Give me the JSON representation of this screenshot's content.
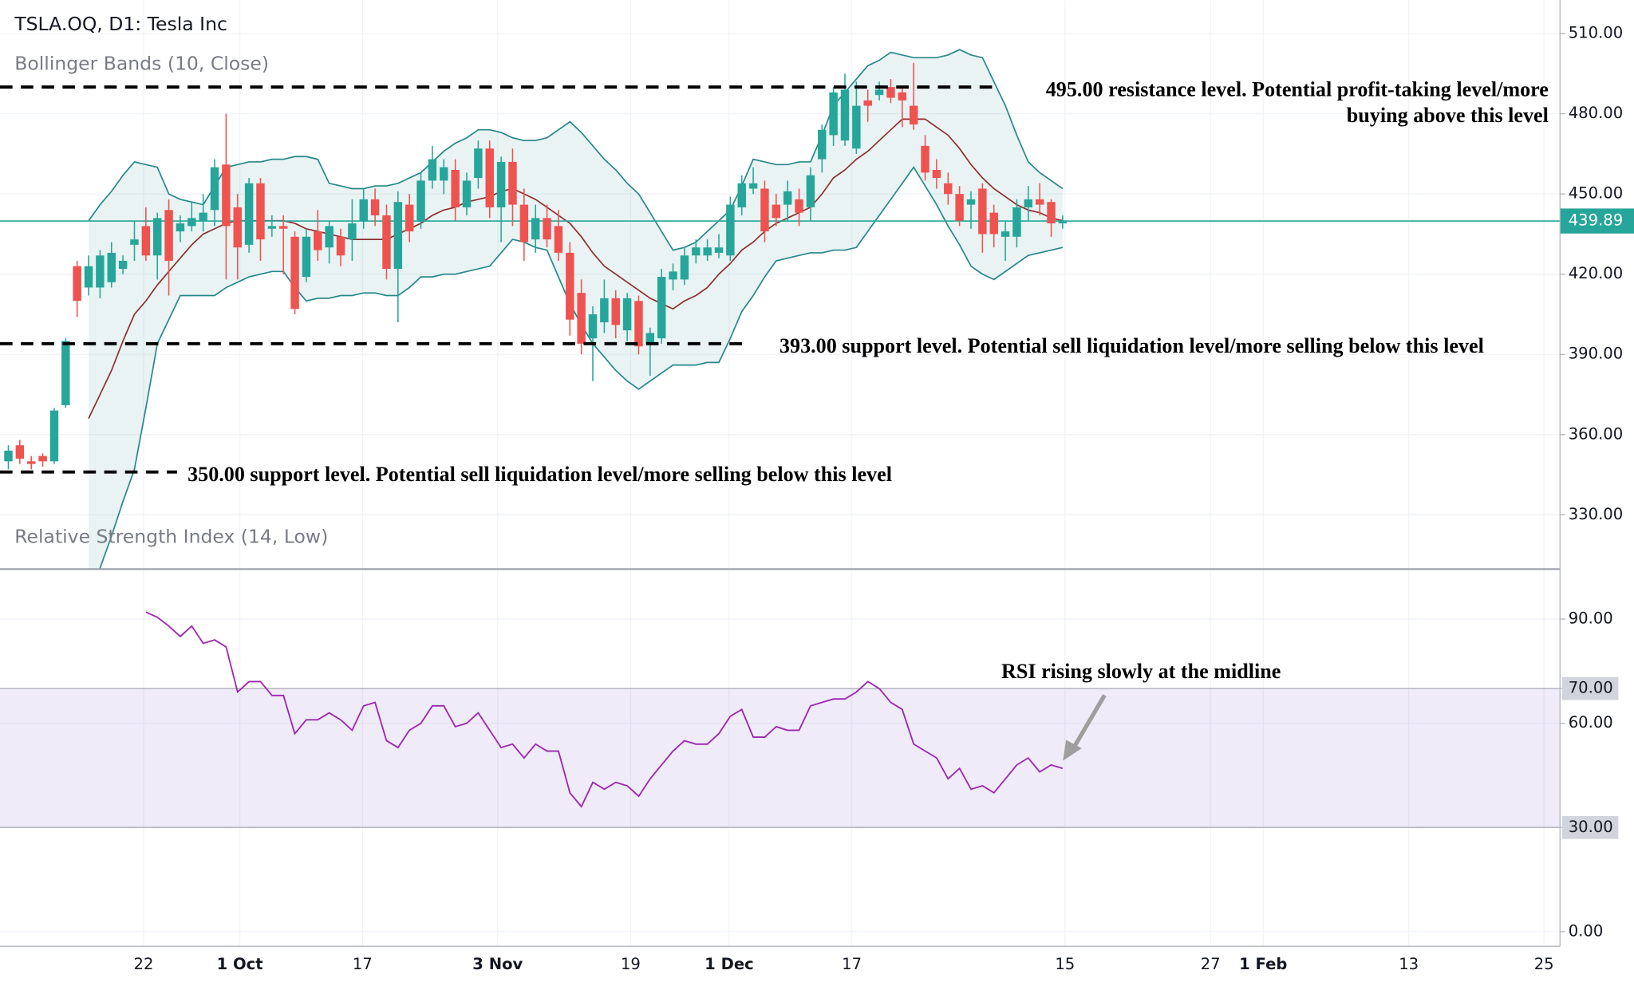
{
  "header": {
    "title": "TSLA.OQ, D1: Tesla Inc"
  },
  "chart_data": [
    {
      "type": "candlestick",
      "title": "Bollinger Bands (10, Close)",
      "up_color": "#26a69a",
      "down_color": "#ef5350",
      "open": [
        350,
        356,
        350,
        352,
        350,
        371,
        423,
        415,
        415,
        417,
        422,
        431,
        438,
        427,
        444,
        436,
        438,
        440,
        444,
        461,
        445,
        431,
        454,
        437,
        438,
        434,
        419,
        436,
        430,
        434,
        433,
        440,
        448,
        442,
        422,
        446,
        440,
        455,
        455,
        459,
        445,
        456,
        467,
        445,
        462,
        446,
        433,
        441,
        438,
        428,
        413,
        396,
        402,
        411,
        399,
        410,
        394,
        396,
        418,
        418,
        427,
        427,
        428,
        427,
        445,
        452,
        452,
        446,
        446,
        448,
        445,
        463,
        472,
        470,
        467,
        485,
        487,
        490,
        488,
        483,
        468,
        459,
        454,
        450,
        446,
        452,
        443,
        434,
        434,
        445,
        448,
        447,
        439
      ],
      "high": [
        356,
        358,
        352,
        353,
        370,
        396,
        425,
        427,
        429,
        432,
        427,
        440,
        445,
        443,
        448,
        442,
        447,
        450,
        463,
        480,
        450,
        456,
        456,
        442,
        442,
        436,
        437,
        444,
        440,
        437,
        448,
        452,
        452,
        446,
        451,
        450,
        458,
        468,
        463,
        463,
        458,
        470,
        470,
        464,
        467,
        452,
        446,
        446,
        444,
        432,
        418,
        408,
        418,
        414,
        413,
        412,
        400,
        422,
        424,
        430,
        433,
        433,
        435,
        449,
        457,
        460,
        455,
        450,
        455,
        452,
        460,
        476,
        490,
        495,
        492,
        489,
        492,
        493,
        490,
        499,
        472,
        463,
        458,
        453,
        451,
        454,
        446,
        440,
        448,
        453,
        454,
        448,
        442
      ],
      "low": [
        347,
        349,
        347,
        348,
        349,
        370,
        404,
        412,
        411,
        415,
        420,
        425,
        425,
        418,
        412,
        432,
        436,
        436,
        438,
        418,
        418,
        428,
        425,
        434,
        420,
        405,
        417,
        425,
        424,
        423,
        425,
        437,
        438,
        418,
        402,
        432,
        437,
        452,
        450,
        440,
        442,
        452,
        441,
        432,
        438,
        425,
        428,
        430,
        425,
        397,
        390,
        380,
        398,
        396,
        395,
        390,
        382,
        394,
        414,
        416,
        424,
        425,
        426,
        425,
        442,
        450,
        432,
        438,
        440,
        438,
        440,
        458,
        468,
        468,
        465,
        477,
        485,
        484,
        475,
        474,
        455,
        452,
        446,
        438,
        437,
        428,
        430,
        425,
        430,
        440,
        442,
        434,
        437
      ],
      "close": [
        354,
        351,
        349,
        350,
        369,
        395,
        410,
        423,
        427,
        428,
        425,
        433,
        427,
        441,
        425,
        439,
        441,
        443,
        460,
        438,
        430,
        454,
        433,
        438,
        437,
        407,
        434,
        429,
        438,
        427,
        439,
        448,
        442,
        422,
        447,
        436,
        455,
        463,
        460,
        445,
        455,
        467,
        445,
        462,
        446,
        432,
        441,
        433,
        428,
        403,
        394,
        405,
        411,
        401,
        411,
        393,
        398,
        419,
        421,
        427,
        430,
        430,
        430,
        446,
        454,
        454,
        436,
        441,
        451,
        443,
        457,
        474,
        488,
        489,
        483,
        483,
        489,
        486,
        485,
        476,
        458,
        456,
        450,
        440,
        448,
        435,
        435,
        436,
        445,
        448,
        446,
        439,
        439.89
      ],
      "bands": {
        "band_color": "#26878a",
        "middle_color": "#8d2f2f",
        "upper": [
          null,
          null,
          null,
          null,
          null,
          null,
          null,
          440,
          446,
          451,
          457,
          462,
          461,
          460,
          450,
          448,
          447,
          446,
          453,
          460,
          461,
          462,
          462,
          463,
          463,
          464,
          464,
          463,
          454,
          453,
          452,
          452,
          453,
          453,
          454,
          456,
          458,
          462,
          466,
          469,
          471,
          474,
          474,
          473,
          471,
          470,
          470,
          471,
          474,
          477,
          473,
          468,
          463,
          459,
          454,
          450,
          443,
          436,
          429,
          430,
          432,
          436,
          440,
          444,
          453,
          463,
          462,
          461,
          461,
          462,
          462,
          472,
          483,
          488,
          493,
          498,
          500,
          503,
          502,
          501,
          501,
          501,
          502,
          504,
          502,
          501,
          492,
          483,
          472,
          462,
          458,
          455,
          452
        ],
        "middle": [
          null,
          null,
          null,
          null,
          null,
          null,
          null,
          366,
          375,
          384,
          395,
          405,
          410,
          416,
          421,
          426,
          431,
          435,
          437,
          439,
          440,
          440,
          440,
          440,
          440,
          439,
          437,
          436,
          435,
          434,
          433,
          433,
          433,
          433,
          435,
          437,
          439,
          442,
          444,
          445,
          447,
          448,
          449,
          451,
          452,
          450,
          448,
          445,
          442,
          439,
          434,
          428,
          423,
          420,
          417,
          414,
          411,
          409,
          407,
          410,
          412,
          415,
          420,
          424,
          429,
          432,
          436,
          439,
          441,
          443,
          445,
          450,
          456,
          459,
          463,
          466,
          470,
          474,
          478,
          478,
          478,
          475,
          472,
          467,
          461,
          456,
          452,
          449,
          446,
          444,
          443,
          441,
          440
        ],
        "lower": [
          null,
          null,
          null,
          null,
          null,
          null,
          null,
          300,
          310,
          322,
          335,
          347,
          370,
          394,
          403,
          412,
          412,
          412,
          412,
          415,
          417,
          419,
          420,
          421,
          421,
          415,
          410,
          411,
          411,
          412,
          412,
          413,
          413,
          412,
          412,
          415,
          419,
          419,
          420,
          420,
          421,
          422,
          423,
          428,
          433,
          432,
          430,
          429,
          419,
          409,
          401,
          394,
          389,
          384,
          380,
          377,
          380,
          383,
          386,
          386,
          386,
          387,
          387,
          396,
          406,
          412,
          419,
          425,
          426,
          427,
          428,
          428,
          429,
          429,
          430,
          436,
          442,
          448,
          454,
          460,
          453,
          446,
          438,
          431,
          423,
          420,
          418,
          421,
          424,
          427,
          428,
          429,
          430
        ]
      },
      "last_price": 439.89,
      "last_price_color": "#26a69a",
      "xlim": [
        -0.73,
        135.4
      ],
      "ylim": [
        309.7,
        522.5
      ],
      "yticks": [
        {
          "value": 330,
          "label": "330.00"
        },
        {
          "value": 360,
          "label": "360.00"
        },
        {
          "value": 390,
          "label": "390.00"
        },
        {
          "value": 420,
          "label": "420.00"
        },
        {
          "value": 450,
          "label": "450.00"
        },
        {
          "value": 480,
          "label": "480.00"
        },
        {
          "value": 510,
          "label": "510.00"
        }
      ],
      "grid": true,
      "annotations": [
        {
          "y": 490,
          "lines": [
            "495.00 resistance level. Potential profit-taking level/more",
            "buying above this level"
          ]
        },
        {
          "y": 394,
          "lines": [
            "393.00 support level. Potential sell liquidation level/more selling below this level"
          ]
        },
        {
          "y": 346,
          "lines": [
            "350.00 support level. Potential sell liquidation level/more selling below this level"
          ]
        }
      ]
    },
    {
      "type": "line",
      "title": "Relative Strength Index (14, Low)",
      "color": "#9c27b0",
      "values": [
        null,
        null,
        null,
        null,
        null,
        null,
        null,
        null,
        null,
        null,
        null,
        null,
        92,
        90.5,
        88,
        85,
        88,
        83,
        84,
        82,
        69,
        72,
        72,
        68,
        68,
        57,
        61,
        61,
        63,
        61,
        58,
        65,
        66,
        55,
        53,
        58,
        60,
        65,
        65,
        59,
        60,
        63,
        58,
        53,
        54,
        50,
        54,
        52,
        52,
        40,
        36,
        43,
        41,
        43,
        42,
        39,
        44,
        48,
        52,
        55,
        54,
        54,
        57,
        62,
        64,
        56,
        56,
        59,
        58,
        58,
        65,
        66,
        67,
        67,
        69,
        72,
        70,
        66,
        64,
        54,
        52,
        50,
        44,
        47,
        41,
        42,
        40,
        44,
        48,
        50,
        46,
        48,
        47
      ],
      "band": [
        30,
        70
      ],
      "band_color": "#7e57c2",
      "xlim": [
        -0.73,
        135.4
      ],
      "ylim": [
        -4.2,
        104.4
      ],
      "yticks": [
        {
          "value": 0,
          "label": "0.00"
        },
        {
          "value": 30,
          "label": "30.00"
        },
        {
          "value": 60,
          "label": "60.00"
        },
        {
          "value": 70,
          "label": "70.00"
        },
        {
          "value": 90,
          "label": "90.00"
        }
      ],
      "xticks": [
        {
          "value": 11.8,
          "label": "22"
        },
        {
          "value": 20.2,
          "label": "1 Oct"
        },
        {
          "value": 30.9,
          "label": "17"
        },
        {
          "value": 42.7,
          "label": "3 Nov"
        },
        {
          "value": 54.3,
          "label": "19"
        },
        {
          "value": 62.9,
          "label": "1 Dec"
        },
        {
          "value": 73.6,
          "label": "17"
        },
        {
          "value": 92.2,
          "label": "15"
        },
        {
          "value": 104.9,
          "label": "27"
        },
        {
          "value": 109.5,
          "label": "1 Feb"
        },
        {
          "value": 122.2,
          "label": "13"
        },
        {
          "value": 134,
          "label": "25"
        }
      ],
      "grid": true,
      "annotation": "RSI rising slowly at the midline"
    }
  ]
}
